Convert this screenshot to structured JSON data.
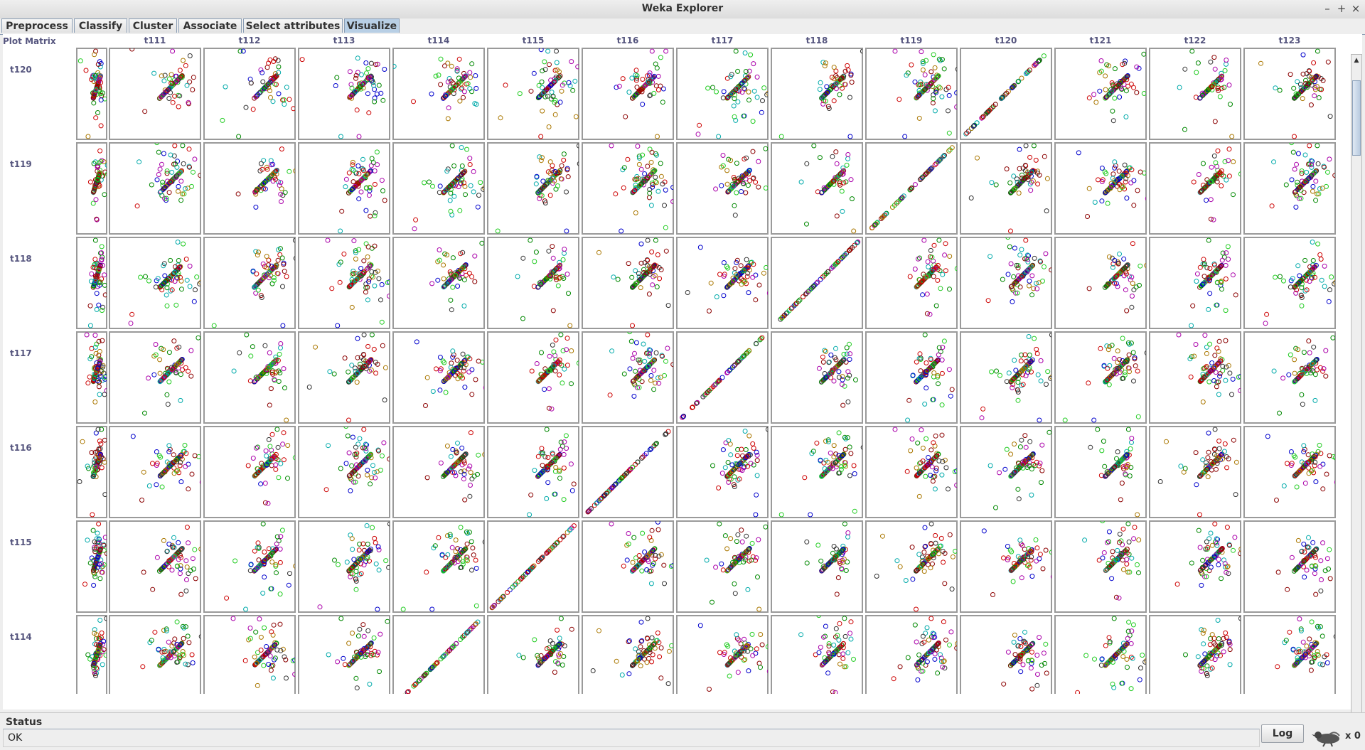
{
  "window": {
    "title": "Weka Explorer",
    "controls": {
      "minimize": "–",
      "maximize": "+",
      "close": "×"
    }
  },
  "tabs": [
    {
      "label": "Preprocess",
      "active": false
    },
    {
      "label": "Classify",
      "active": false
    },
    {
      "label": "Cluster",
      "active": false
    },
    {
      "label": "Associate",
      "active": false
    },
    {
      "label": "Select attributes",
      "active": false
    },
    {
      "label": "Visualize",
      "active": true
    }
  ],
  "plot_matrix": {
    "title": "Plot Matrix",
    "columns": [
      "t111",
      "t112",
      "t113",
      "t114",
      "t115",
      "t116",
      "t117",
      "t118",
      "t119",
      "t120",
      "t121",
      "t122",
      "t123"
    ],
    "rows": [
      "t120",
      "t119",
      "t118",
      "t117",
      "t116",
      "t115",
      "t114"
    ],
    "class_colors": [
      "#8b0000",
      "#aa00aa",
      "#008800",
      "#22cc22",
      "#0000cc",
      "#00aaaa",
      "#aa7700",
      "#cc0000",
      "#333333"
    ]
  },
  "status": {
    "title": "Status",
    "text": "OK",
    "log_label": "Log",
    "task_count": "x 0"
  }
}
